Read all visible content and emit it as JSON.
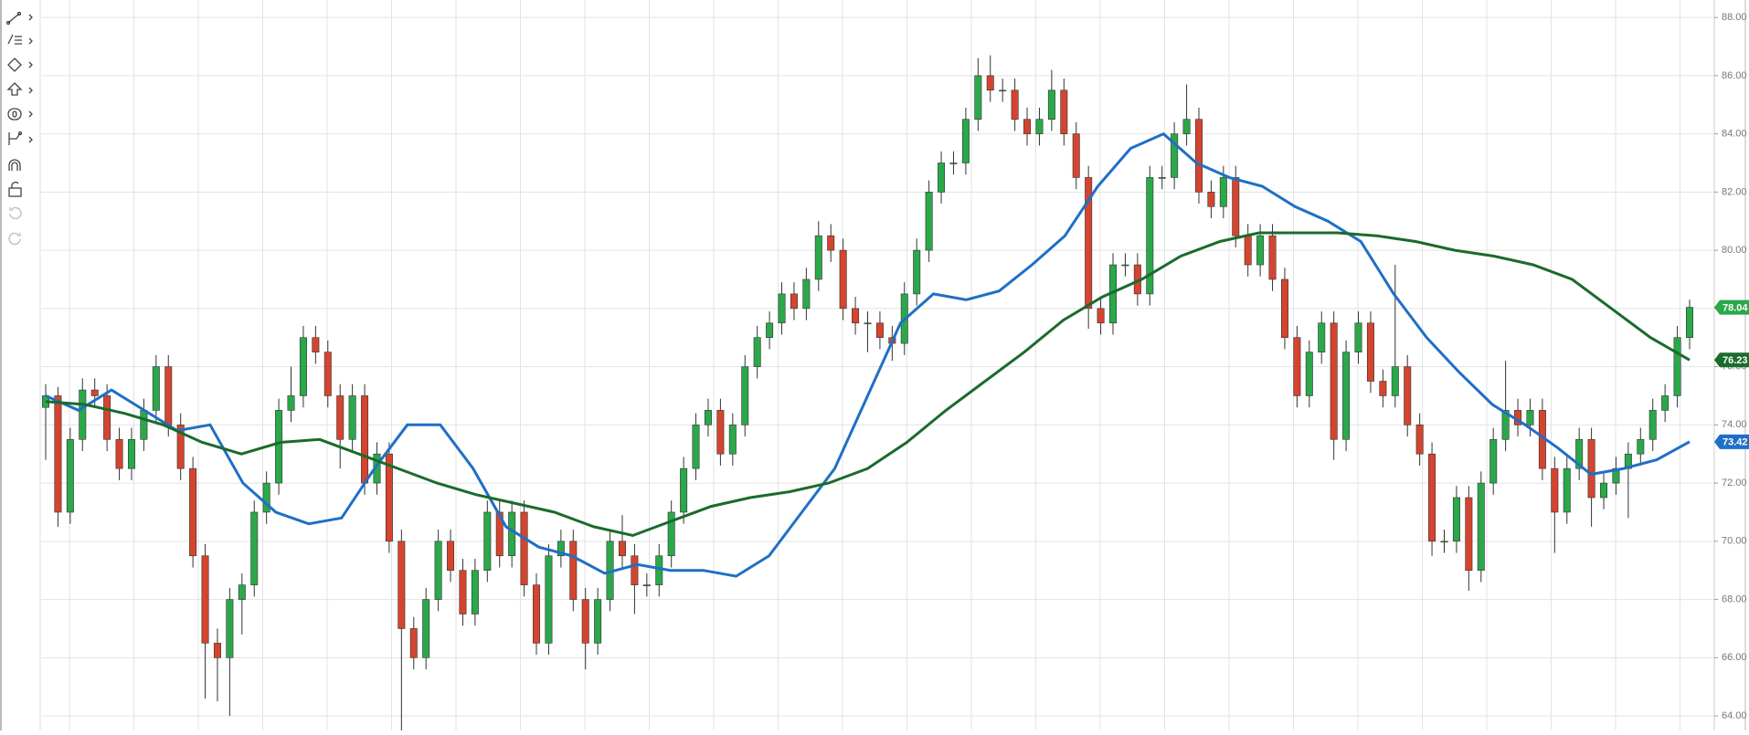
{
  "chart_data": {
    "type": "candlestick",
    "ylim": [
      63.5,
      88.6
    ],
    "yticks": [
      {
        "value": 64,
        "label": "64.00"
      },
      {
        "value": 66,
        "label": "66.00"
      },
      {
        "value": 68,
        "label": "68.00"
      },
      {
        "value": 70,
        "label": "70.00"
      },
      {
        "value": 72,
        "label": "72.00"
      },
      {
        "value": 74,
        "label": "74.00"
      },
      {
        "value": 76,
        "label": "76.00"
      },
      {
        "value": 78,
        "label": "78.00"
      },
      {
        "value": 80,
        "label": "80.00"
      },
      {
        "value": 82,
        "label": "82.00"
      },
      {
        "value": 84,
        "label": "84.00"
      },
      {
        "value": 86,
        "label": "86.00"
      },
      {
        "value": 88,
        "label": "88.00"
      }
    ],
    "grid": true,
    "up_color": "#2aa84a",
    "down_color": "#d4442f",
    "ohlc": [
      [
        74.6,
        75.4,
        72.8,
        75
      ],
      [
        75,
        75.3,
        70.5,
        71
      ],
      [
        71,
        73.9,
        70.6,
        73.5
      ],
      [
        73.5,
        75.6,
        73.1,
        75.2
      ],
      [
        75.2,
        75.6,
        74.6,
        75
      ],
      [
        75,
        75.4,
        73.1,
        73.5
      ],
      [
        73.5,
        73.9,
        72.1,
        72.5
      ],
      [
        72.5,
        73.9,
        72.1,
        73.5
      ],
      [
        73.5,
        74.9,
        73.1,
        74.5
      ],
      [
        74.5,
        76.4,
        74.1,
        76
      ],
      [
        76,
        76.4,
        73.6,
        74
      ],
      [
        74,
        74.4,
        72.1,
        72.5
      ],
      [
        72.5,
        72.9,
        69.1,
        69.5
      ],
      [
        69.5,
        69.9,
        64.6,
        66.5
      ],
      [
        66.5,
        67,
        64.5,
        66
      ],
      [
        66,
        68.4,
        64,
        68
      ],
      [
        68,
        68.9,
        66.8,
        68.5
      ],
      [
        68.5,
        71.4,
        68.1,
        71
      ],
      [
        71,
        72.4,
        70.6,
        72
      ],
      [
        72,
        74.9,
        71.6,
        74.5
      ],
      [
        74.5,
        76,
        74.1,
        75
      ],
      [
        75,
        77.4,
        74.6,
        77
      ],
      [
        77,
        77.4,
        76.1,
        76.5
      ],
      [
        76.5,
        76.9,
        74.6,
        75
      ],
      [
        75,
        75.4,
        72.5,
        73.5
      ],
      [
        73.5,
        75.4,
        73.1,
        75
      ],
      [
        75,
        75.4,
        71.6,
        72
      ],
      [
        72,
        73.4,
        71.6,
        73
      ],
      [
        73,
        73.4,
        69.6,
        70
      ],
      [
        70,
        70.4,
        63.2,
        67
      ],
      [
        67,
        67.4,
        65.6,
        66
      ],
      [
        66,
        68.4,
        65.6,
        68
      ],
      [
        68,
        70.4,
        67.6,
        70
      ],
      [
        70,
        70.4,
        68.6,
        69
      ],
      [
        69,
        69.4,
        67.1,
        67.5
      ],
      [
        67.5,
        69.4,
        67.1,
        69
      ],
      [
        69,
        71.4,
        68.6,
        71
      ],
      [
        71,
        71.4,
        69.1,
        69.5
      ],
      [
        69.5,
        71.4,
        69.1,
        71
      ],
      [
        71,
        71.4,
        68.1,
        68.5
      ],
      [
        68.5,
        68.9,
        66.1,
        66.5
      ],
      [
        66.5,
        69.9,
        66.1,
        69.5
      ],
      [
        69.5,
        70.4,
        69.1,
        70
      ],
      [
        70,
        70.4,
        67.6,
        68
      ],
      [
        68,
        68.4,
        65.6,
        66.5
      ],
      [
        66.5,
        68.4,
        66.1,
        68
      ],
      [
        68,
        70.4,
        67.6,
        70
      ],
      [
        70,
        70.9,
        69.1,
        69.5
      ],
      [
        69.5,
        69.9,
        67.5,
        68.5
      ],
      [
        68.5,
        68.9,
        68.1,
        68.5
      ],
      [
        68.5,
        69.9,
        68.1,
        69.5
      ],
      [
        69.5,
        71.4,
        69.1,
        71
      ],
      [
        71,
        72.9,
        70.6,
        72.5
      ],
      [
        72.5,
        74.4,
        72.1,
        74
      ],
      [
        74,
        74.9,
        73.6,
        74.5
      ],
      [
        74.5,
        74.9,
        72.6,
        73
      ],
      [
        73,
        74.4,
        72.6,
        74
      ],
      [
        74,
        76.4,
        73.6,
        76
      ],
      [
        76,
        77.4,
        75.6,
        77
      ],
      [
        77,
        77.9,
        76.6,
        77.5
      ],
      [
        77.5,
        78.9,
        77.1,
        78.5
      ],
      [
        78.5,
        78.9,
        77.6,
        78
      ],
      [
        78,
        79.4,
        77.6,
        79
      ],
      [
        79,
        81,
        78.6,
        80.5
      ],
      [
        80.5,
        80.9,
        79.6,
        80
      ],
      [
        80,
        80.4,
        77.6,
        78
      ],
      [
        78,
        78.4,
        77.1,
        77.5
      ],
      [
        77.5,
        77.9,
        76.5,
        77.5
      ],
      [
        77.5,
        77.9,
        76.6,
        77
      ],
      [
        77,
        77.4,
        76.2,
        76.8
      ],
      [
        76.8,
        78.9,
        76.4,
        78.5
      ],
      [
        78.5,
        80.4,
        78.1,
        80
      ],
      [
        80,
        82.4,
        79.6,
        82
      ],
      [
        82,
        83.4,
        81.6,
        83
      ],
      [
        83,
        83.4,
        82.6,
        83
      ],
      [
        83,
        84.9,
        82.6,
        84.5
      ],
      [
        84.5,
        86.6,
        84.1,
        86
      ],
      [
        86,
        86.7,
        85.1,
        85.5
      ],
      [
        85.5,
        85.9,
        85.1,
        85.5
      ],
      [
        85.5,
        85.9,
        84.1,
        84.5
      ],
      [
        84.5,
        84.9,
        83.6,
        84
      ],
      [
        84,
        84.9,
        83.6,
        84.5
      ],
      [
        84.5,
        86.2,
        84.1,
        85.5
      ],
      [
        85.5,
        85.9,
        83.6,
        84
      ],
      [
        84,
        84.4,
        82.1,
        82.5
      ],
      [
        82.5,
        82.9,
        77.3,
        78
      ],
      [
        78,
        78.4,
        77.1,
        77.5
      ],
      [
        77.5,
        79.9,
        77.1,
        79.5
      ],
      [
        79.5,
        79.9,
        79.1,
        79.5
      ],
      [
        79.5,
        79.9,
        78.1,
        78.5
      ],
      [
        78.5,
        82.9,
        78.1,
        82.5
      ],
      [
        82.5,
        82.9,
        82.1,
        82.5
      ],
      [
        82.5,
        84.4,
        82.1,
        84
      ],
      [
        84,
        85.7,
        83.6,
        84.5
      ],
      [
        84.5,
        84.9,
        81.6,
        82
      ],
      [
        82,
        82.4,
        81.1,
        81.5
      ],
      [
        81.5,
        82.9,
        81.1,
        82.5
      ],
      [
        82.5,
        82.9,
        80.1,
        80.5
      ],
      [
        80.5,
        80.9,
        79.1,
        79.5
      ],
      [
        79.5,
        80.9,
        79.1,
        80.5
      ],
      [
        80.5,
        80.9,
        78.6,
        79
      ],
      [
        79,
        79.4,
        76.6,
        77
      ],
      [
        77,
        77.4,
        74.6,
        75
      ],
      [
        75,
        76.9,
        74.6,
        76.5
      ],
      [
        76.5,
        77.9,
        76.1,
        77.5
      ],
      [
        77.5,
        77.9,
        72.8,
        73.5
      ],
      [
        73.5,
        76.9,
        73.1,
        76.5
      ],
      [
        76.5,
        77.9,
        76.1,
        77.5
      ],
      [
        77.5,
        77.9,
        75.1,
        75.5
      ],
      [
        75.5,
        75.9,
        74.6,
        75
      ],
      [
        75,
        79.5,
        74.6,
        76
      ],
      [
        76,
        76.4,
        73.6,
        74
      ],
      [
        74,
        74.4,
        72.6,
        73
      ],
      [
        73,
        73.4,
        69.5,
        70
      ],
      [
        70,
        70.4,
        69.6,
        70
      ],
      [
        70,
        71.9,
        69.6,
        71.5
      ],
      [
        71.5,
        71.9,
        68.3,
        69
      ],
      [
        69,
        72.4,
        68.6,
        72
      ],
      [
        72,
        73.9,
        71.6,
        73.5
      ],
      [
        73.5,
        76.2,
        73.1,
        74.5
      ],
      [
        74.5,
        74.9,
        73.6,
        74
      ],
      [
        74,
        74.9,
        73.6,
        74.5
      ],
      [
        74.5,
        74.9,
        72.1,
        72.5
      ],
      [
        72.5,
        72.9,
        69.6,
        71
      ],
      [
        71,
        72.9,
        70.6,
        72.5
      ],
      [
        72.5,
        73.9,
        72.1,
        73.5
      ],
      [
        73.5,
        73.9,
        70.5,
        71.5
      ],
      [
        71.5,
        72.4,
        71.1,
        72
      ],
      [
        72,
        72.9,
        71.6,
        72.5
      ],
      [
        72.5,
        73.4,
        70.8,
        73
      ],
      [
        73,
        73.9,
        72.6,
        73.5
      ],
      [
        73.5,
        74.9,
        73.1,
        74.5
      ],
      [
        74.5,
        75.4,
        74.1,
        75
      ],
      [
        75,
        77.4,
        74.6,
        77
      ],
      [
        77,
        78.3,
        76.6,
        78.04
      ]
    ],
    "series": [
      {
        "color": "#1f6fc6",
        "values": [
          75,
          74.5,
          75.2,
          74.5,
          73.8,
          74,
          72,
          71,
          70.6,
          70.8,
          72.5,
          74,
          74,
          72.5,
          70.5,
          69.8,
          69.5,
          68.9,
          69.2,
          69,
          69,
          68.8,
          69.5,
          71,
          72.5,
          75,
          77.5,
          78.5,
          78.3,
          78.6,
          79.5,
          80.5,
          82.2,
          83.5,
          84,
          83,
          82.5,
          82.2,
          81.5,
          81,
          80.3,
          78.5,
          77,
          75.8,
          74.7,
          74,
          73.2,
          72.3,
          72.5,
          72.8,
          73.42
        ]
      },
      {
        "color": "#1a6b2c",
        "values": [
          74.8,
          74.7,
          74.4,
          74,
          73.4,
          73,
          73.4,
          73.5,
          73,
          72.5,
          72,
          71.6,
          71.3,
          71,
          70.5,
          70.2,
          70.7,
          71.2,
          71.5,
          71.7,
          72,
          72.5,
          73.4,
          74.5,
          75.5,
          76.5,
          77.6,
          78.4,
          79,
          79.8,
          80.3,
          80.6,
          80.6,
          80.6,
          80.5,
          80.3,
          80,
          79.8,
          79.5,
          79,
          78,
          77,
          76.23
        ]
      }
    ]
  }
}
